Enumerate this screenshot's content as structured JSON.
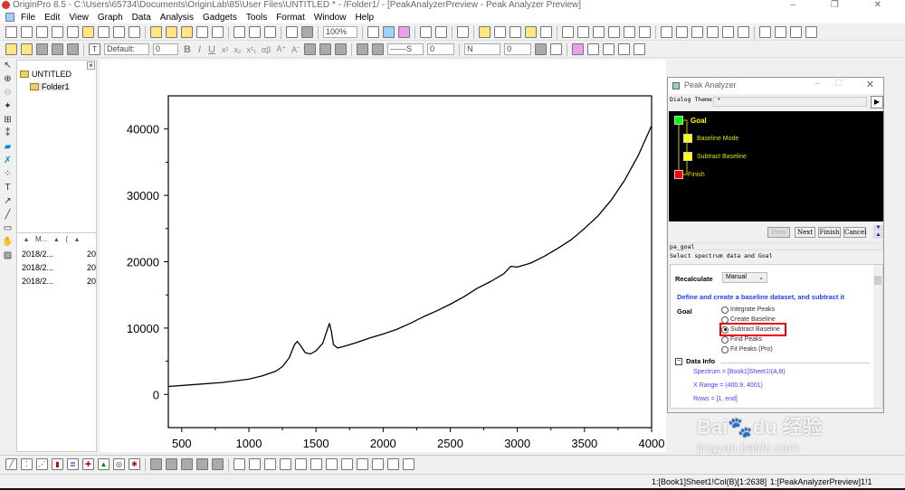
{
  "window": {
    "title": "OriginPro 8.5 - C:\\Users\\65734\\Documents\\OriginLab\\85\\User Files\\UNTITLED * - /Folder1/ - [PeakAnalyzerPreview - Peak Analyzer Preview]",
    "controls": "–  ❐  ✕"
  },
  "menu": [
    "File",
    "Edit",
    "View",
    "Graph",
    "Data",
    "Analysis",
    "Gadgets",
    "Tools",
    "Format",
    "Window",
    "Help"
  ],
  "toolbar1": {
    "zoom": "100%"
  },
  "toolbar2": {
    "font": "Default:",
    "size": "0",
    "bold": "B",
    "italic": "I",
    "underline": "U",
    "sup": "x²",
    "sub": "x₂",
    "supsub": "x²₁",
    "greek": "αβ",
    "grow": "A⁺",
    "shrink": "Aˉ",
    "line_size": "0",
    "n_label": "N",
    "pt": "0"
  },
  "project": {
    "root": "UNTITLED",
    "folder": "Folder1",
    "columns": [
      "M...",
      "(",
      ""
    ],
    "rows": [
      [
        "2018/2...",
        "20"
      ],
      [
        "2018/2...",
        "20"
      ],
      [
        "2018/2...",
        "20"
      ]
    ]
  },
  "chart_data": {
    "type": "line",
    "xlim": [
      400,
      4000
    ],
    "ylim": [
      -5000,
      45000
    ],
    "xticks": [
      "500",
      "1000",
      "1500",
      "2000",
      "2500",
      "3000",
      "3500",
      "4000"
    ],
    "yticks": [
      "0",
      "10000",
      "20000",
      "30000",
      "40000"
    ],
    "x": [
      400,
      600,
      800,
      1000,
      1100,
      1200,
      1250,
      1300,
      1340,
      1360,
      1380,
      1420,
      1460,
      1500,
      1550,
      1580,
      1600,
      1615,
      1630,
      1660,
      1700,
      1800,
      1900,
      2000,
      2100,
      2200,
      2300,
      2400,
      2500,
      2600,
      2700,
      2800,
      2900,
      2950,
      3000,
      3100,
      3200,
      3300,
      3400,
      3500,
      3600,
      3700,
      3800,
      3900,
      4000
    ],
    "y": [
      1200,
      1500,
      1800,
      2300,
      2800,
      3500,
      4200,
      5500,
      7500,
      8000,
      7500,
      6300,
      6100,
      6600,
      7700,
      9500,
      10700,
      9500,
      7500,
      7000,
      7200,
      7800,
      8500,
      9100,
      9800,
      10700,
      11700,
      12600,
      13600,
      14700,
      16000,
      17000,
      18200,
      19300,
      19200,
      19800,
      20800,
      22000,
      23300,
      25000,
      26900,
      29300,
      32300,
      36000,
      40500
    ],
    "color": "#000000"
  },
  "dialog": {
    "title": "Peak Analyzer",
    "theme_label": "Dialog Theme",
    "theme_value": "*",
    "steps": [
      {
        "label": "Goal",
        "color": "#00ff00"
      },
      {
        "label": "Baseline Mode",
        "color": "#ffff00"
      },
      {
        "label": "Subtract Baseline",
        "color": "#ffff00"
      },
      {
        "label": "Finish",
        "color": "#ff0000"
      }
    ],
    "buttons": {
      "prev": "Prev",
      "next": "Next",
      "finish": "Finish",
      "cancel": "Cancel"
    },
    "page_name": "pa_goal",
    "page_desc": "Select spectrum data and Goal",
    "recalc_label": "Recalculate",
    "recalc_value": "Manual",
    "heading": "Define and create a baseline dataset, and subtract it",
    "goal_label": "Goal",
    "goals": [
      "Integrate Peaks",
      "Create Baseline",
      "Subtract Baseline",
      "Find Peaks",
      "Fit Peaks (Pro)"
    ],
    "selected_goal": 2,
    "data_info_label": "Data Info",
    "spectrum": "Spectrum = [Book1]Sheet1!(A,B)",
    "xrange": "X Range = (400.9, 4001)",
    "rows": "Rows = [1, end]"
  },
  "status": {
    "left": "1:[Book1]Sheet1!Col(B)[1:2638]",
    "right": "1:[PeakAnalyzerPreview]1!1"
  },
  "watermark": "Baidu 经验 jingyan.baidu.com"
}
